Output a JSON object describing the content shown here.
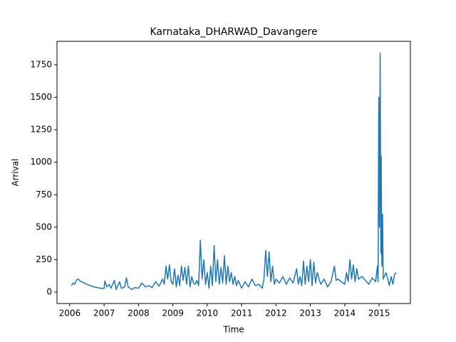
{
  "chart_data": {
    "type": "line",
    "title": "Karnataka_DHARWAD_Davangere",
    "x_label": "Time",
    "y_label": "Arrival",
    "x": [
      2006.05,
      2006.1,
      2006.15,
      2006.2,
      2006.25,
      2006.3,
      2006.5,
      2006.7,
      2006.9,
      2007.0,
      2007.02,
      2007.08,
      2007.15,
      2007.2,
      2007.3,
      2007.35,
      2007.45,
      2007.5,
      2007.6,
      2007.65,
      2007.7,
      2007.8,
      2007.9,
      2008.0,
      2008.1,
      2008.2,
      2008.3,
      2008.4,
      2008.5,
      2008.6,
      2008.7,
      2008.75,
      2008.8,
      2008.85,
      2008.9,
      2008.95,
      2009.0,
      2009.05,
      2009.1,
      2009.15,
      2009.2,
      2009.25,
      2009.3,
      2009.35,
      2009.4,
      2009.45,
      2009.5,
      2009.55,
      2009.6,
      2009.65,
      2009.7,
      2009.75,
      2009.8,
      2009.85,
      2009.9,
      2009.95,
      2010.0,
      2010.05,
      2010.1,
      2010.15,
      2010.2,
      2010.25,
      2010.3,
      2010.35,
      2010.4,
      2010.45,
      2010.5,
      2010.55,
      2010.6,
      2010.65,
      2010.7,
      2010.75,
      2010.8,
      2010.85,
      2010.9,
      2011.0,
      2011.1,
      2011.2,
      2011.3,
      2011.4,
      2011.5,
      2011.6,
      2011.65,
      2011.7,
      2011.75,
      2011.8,
      2011.85,
      2011.9,
      2011.95,
      2012.0,
      2012.1,
      2012.2,
      2012.3,
      2012.4,
      2012.5,
      2012.6,
      2012.65,
      2012.7,
      2012.75,
      2012.8,
      2012.85,
      2012.9,
      2012.95,
      2013.0,
      2013.05,
      2013.1,
      2013.15,
      2013.2,
      2013.3,
      2013.4,
      2013.5,
      2013.6,
      2013.7,
      2013.75,
      2013.8,
      2013.9,
      2014.0,
      2014.05,
      2014.1,
      2014.15,
      2014.2,
      2014.25,
      2014.3,
      2014.35,
      2014.4,
      2014.5,
      2014.6,
      2014.7,
      2014.8,
      2014.9,
      2014.95,
      2014.97,
      2014.99,
      2015.01,
      2015.03,
      2015.05,
      2015.06,
      2015.08,
      2015.1,
      2015.12,
      2015.2,
      2015.3,
      2015.35,
      2015.4,
      2015.45,
      2015.5
    ],
    "series": [
      {
        "color": "#1f77b4",
        "values": [
          50,
          70,
          60,
          95,
          100,
          85,
          60,
          40,
          30,
          28,
          85,
          40,
          60,
          30,
          90,
          20,
          80,
          30,
          40,
          110,
          40,
          20,
          35,
          30,
          70,
          40,
          50,
          35,
          80,
          45,
          100,
          60,
          200,
          100,
          210,
          80,
          60,
          180,
          40,
          130,
          50,
          200,
          90,
          190,
          60,
          200,
          40,
          120,
          70,
          60,
          90,
          50,
          400,
          100,
          250,
          60,
          150,
          30,
          200,
          50,
          360,
          80,
          250,
          60,
          190,
          70,
          280,
          60,
          200,
          80,
          150,
          60,
          120,
          50,
          90,
          30,
          80,
          40,
          100,
          50,
          60,
          30,
          100,
          320,
          120,
          310,
          80,
          200,
          60,
          100,
          70,
          120,
          60,
          110,
          70,
          180,
          60,
          120,
          50,
          240,
          60,
          200,
          80,
          250,
          50,
          230,
          70,
          150,
          60,
          100,
          40,
          80,
          200,
          90,
          100,
          80,
          60,
          150,
          80,
          250,
          100,
          210,
          80,
          180,
          100,
          120,
          90,
          60,
          110,
          80,
          200,
          80,
          1500,
          500,
          1840,
          300,
          1050,
          200,
          600,
          100,
          150,
          50,
          120,
          60,
          140,
          150
        ]
      }
    ],
    "xlim": [
      2005.63,
      2015.91
    ],
    "xticks": [
      2006,
      2007,
      2008,
      2009,
      2010,
      2011,
      2012,
      2013,
      2014,
      2015
    ],
    "ylim": [
      -88,
      1931
    ],
    "yticks": [
      0,
      250,
      500,
      750,
      1000,
      1250,
      1500,
      1750
    ]
  }
}
